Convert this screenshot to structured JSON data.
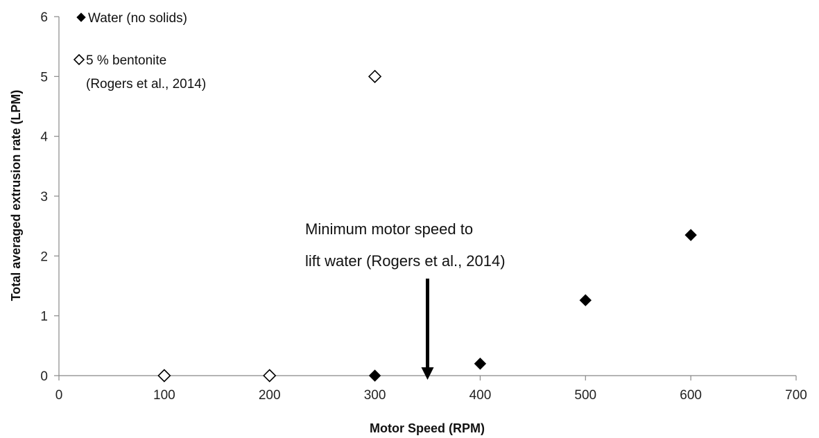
{
  "chart_data": {
    "type": "scatter",
    "title": "",
    "xlabel": "Motor Speed (RPM)",
    "ylabel": "Total averaged extrusion rate (LPM)",
    "xlim": [
      0,
      700
    ],
    "ylim": [
      0,
      6
    ],
    "x_ticks": [
      0,
      100,
      200,
      300,
      400,
      500,
      600,
      700
    ],
    "y_ticks": [
      0,
      1,
      2,
      3,
      4,
      5,
      6
    ],
    "grid": false,
    "legend_position": "top-left",
    "series": [
      {
        "name": "Water (no solids)",
        "marker": "filled-diamond",
        "color": "#000000",
        "points": [
          {
            "x": 300,
            "y": 0.0
          },
          {
            "x": 400,
            "y": 0.2
          },
          {
            "x": 500,
            "y": 1.26
          },
          {
            "x": 600,
            "y": 2.35
          }
        ]
      },
      {
        "name_lines": [
          "5 % bentonite",
          "(Rogers et al., 2014)"
        ],
        "marker": "open-diamond",
        "color": "#000000",
        "points": [
          {
            "x": 100,
            "y": 0.0
          },
          {
            "x": 200,
            "y": 0.0
          },
          {
            "x": 300,
            "y": 5.0
          }
        ]
      }
    ],
    "annotation": {
      "lines": [
        "Minimum motor speed to",
        "lift water (Rogers et al., 2014)"
      ],
      "arrow_x": 350,
      "arrow_from_y": 1.6,
      "arrow_to_y": 0.0
    }
  }
}
